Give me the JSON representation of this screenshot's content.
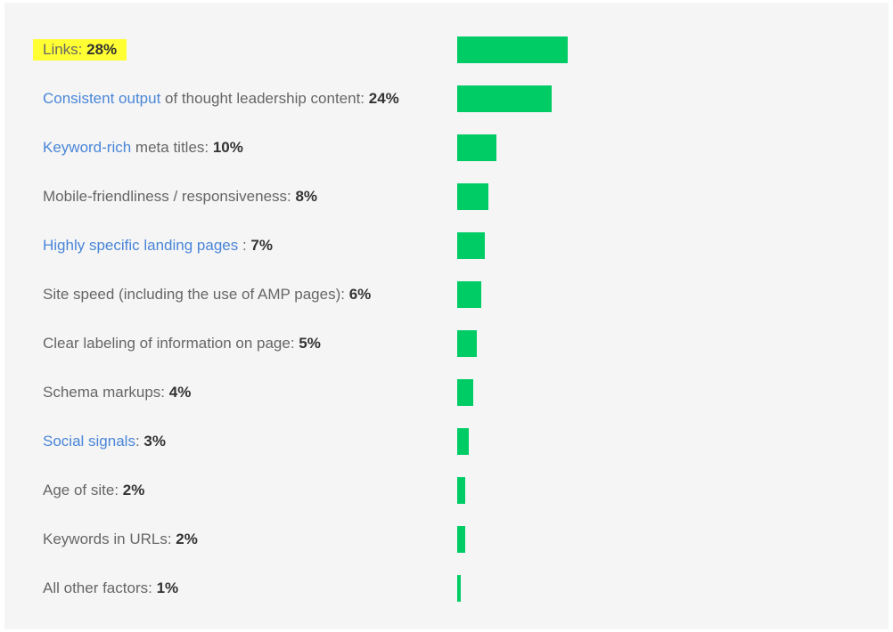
{
  "chart_data": {
    "type": "bar",
    "orientation": "horizontal",
    "bar_color": "#00cc66",
    "highlight_color": "#ffff33",
    "link_color": "#4a86d8",
    "text_color": "#666666",
    "value_color": "#333333",
    "background": "#f5f5f5",
    "title": "",
    "xlabel": "",
    "ylabel": "",
    "xlim": [
      0,
      28
    ],
    "grid": false,
    "legend": "none",
    "categories": [
      {
        "parts": [
          {
            "text": "Links: ",
            "style": "plain"
          },
          {
            "text": "28%",
            "style": "value"
          }
        ],
        "highlighted": true,
        "value": 28
      },
      {
        "parts": [
          {
            "text": "Consistent output",
            "style": "link"
          },
          {
            "text": " of thought leadership content: ",
            "style": "plain"
          },
          {
            "text": "24%",
            "style": "value"
          }
        ],
        "highlighted": false,
        "value": 24
      },
      {
        "parts": [
          {
            "text": "Keyword-rich",
            "style": "link"
          },
          {
            "text": " meta titles: ",
            "style": "plain"
          },
          {
            "text": "10%",
            "style": "value"
          }
        ],
        "highlighted": false,
        "value": 10
      },
      {
        "parts": [
          {
            "text": "Mobile-friendliness / responsiveness: ",
            "style": "plain"
          },
          {
            "text": "8%",
            "style": "value"
          }
        ],
        "highlighted": false,
        "value": 8
      },
      {
        "parts": [
          {
            "text": "Highly specific landing pages",
            "style": "link"
          },
          {
            "text": " : ",
            "style": "plain"
          },
          {
            "text": "7%",
            "style": "value"
          }
        ],
        "highlighted": false,
        "value": 7
      },
      {
        "parts": [
          {
            "text": "Site speed (including the use of AMP pages): ",
            "style": "plain"
          },
          {
            "text": "6%",
            "style": "value"
          }
        ],
        "highlighted": false,
        "value": 6
      },
      {
        "parts": [
          {
            "text": "Clear labeling of information on page: ",
            "style": "plain"
          },
          {
            "text": "5%",
            "style": "value"
          }
        ],
        "highlighted": false,
        "value": 5
      },
      {
        "parts": [
          {
            "text": "Schema markups: ",
            "style": "plain"
          },
          {
            "text": "4%",
            "style": "value"
          }
        ],
        "highlighted": false,
        "value": 4
      },
      {
        "parts": [
          {
            "text": "Social signals",
            "style": "link"
          },
          {
            "text": ": ",
            "style": "plain"
          },
          {
            "text": "3%",
            "style": "value"
          }
        ],
        "highlighted": false,
        "value": 3
      },
      {
        "parts": [
          {
            "text": "Age of site: ",
            "style": "plain"
          },
          {
            "text": "2%",
            "style": "value"
          }
        ],
        "highlighted": false,
        "value": 2
      },
      {
        "parts": [
          {
            "text": "Keywords in URLs: ",
            "style": "plain"
          },
          {
            "text": "2%",
            "style": "value"
          }
        ],
        "highlighted": false,
        "value": 2
      },
      {
        "parts": [
          {
            "text": "All other factors: ",
            "style": "plain"
          },
          {
            "text": "1%",
            "style": "value"
          }
        ],
        "highlighted": false,
        "value": 1
      }
    ]
  }
}
